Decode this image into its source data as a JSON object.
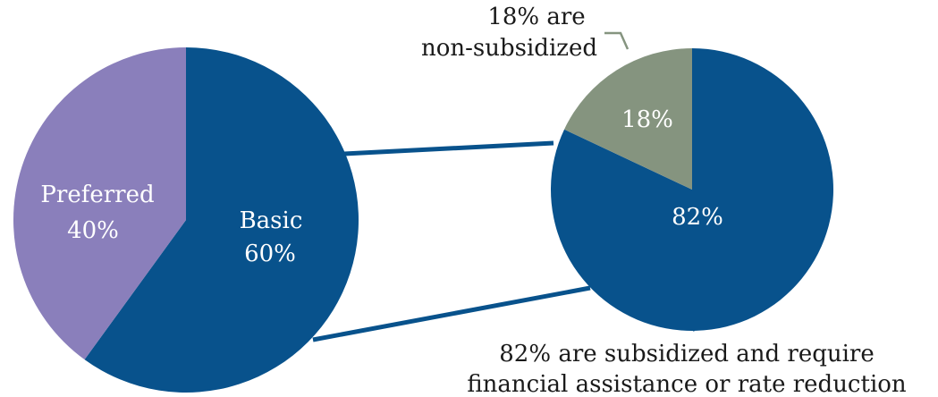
{
  "chart_data": [
    {
      "type": "pie",
      "title": "",
      "slices": [
        {
          "label": "Basic",
          "value": 60,
          "value_label": "60%",
          "color": "#08528c"
        },
        {
          "label": "Preferred",
          "value": 40,
          "value_label": "40%",
          "color": "#8a7fbb"
        }
      ],
      "start": "12 o'clock",
      "direction": "clockwise"
    },
    {
      "type": "pie",
      "title": "",
      "slices": [
        {
          "label": "",
          "value": 82,
          "value_label": "82%",
          "color": "#08528c"
        },
        {
          "label": "",
          "value": 18,
          "value_label": "18%",
          "color": "#85947f"
        }
      ],
      "start": "12 o'clock",
      "direction": "clockwise",
      "annotations": {
        "non_subsidized_line1": "18% are",
        "non_subsidized_line2": "non-subsidized",
        "subsidized_line1": "82% are subsidized and require",
        "subsidized_line2": "financial assistance or rate reduction"
      }
    }
  ]
}
